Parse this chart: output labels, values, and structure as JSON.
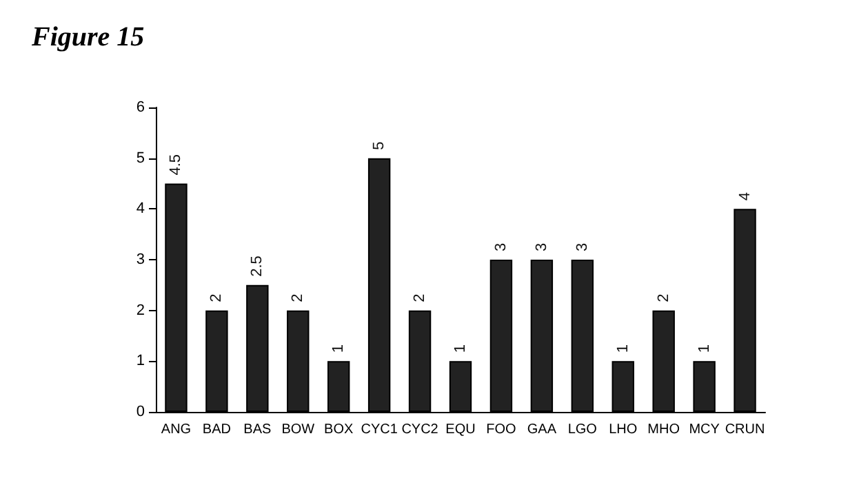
{
  "chart_data": {
    "type": "bar",
    "title": "Figure 15",
    "categories": [
      "ANG",
      "BAD",
      "BAS",
      "BOW",
      "BOX",
      "CYC1",
      "CYC2",
      "EQU",
      "FOO",
      "GAA",
      "LGO",
      "LHO",
      "MHO",
      "MCY",
      "CRUN"
    ],
    "values": [
      4.5,
      2,
      2.5,
      2,
      1,
      5,
      2,
      1,
      3,
      3,
      3,
      1,
      2,
      1,
      4
    ],
    "color": "#222222",
    "ylim": [
      0,
      6
    ],
    "yticks": [
      0,
      1,
      2,
      3,
      4,
      5,
      6
    ],
    "data_labels": true,
    "grid": false
  }
}
